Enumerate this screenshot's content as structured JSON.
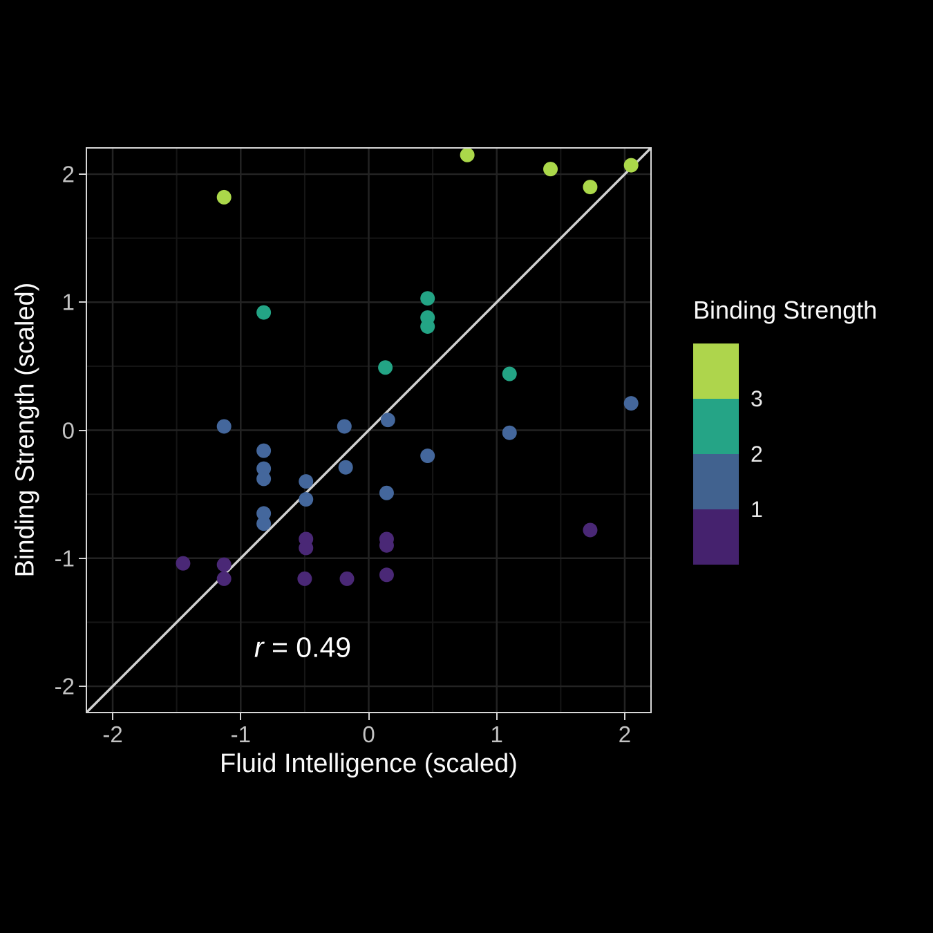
{
  "figure": {
    "background": "#000000",
    "panel_border_color": "#d8d8d8",
    "grid_major_color": "#232323",
    "grid_minor_color": "#161616",
    "identity_line_color": "#d0d0d0",
    "text_color": "#fafafa",
    "tick_label_color": "#c3c3c3"
  },
  "annotation": {
    "r_symbol": "r",
    "rest": " = 0.49",
    "full_text": "r = 0.49",
    "position_data_xy": [
      -0.51,
      -1.69
    ]
  },
  "legend": {
    "title": "Binding Strength",
    "break_labels": [
      "3",
      "2",
      "1"
    ],
    "segment_colors_top_to_bottom": [
      "#aed54c",
      "#25a486",
      "#41628f",
      "#45226e"
    ]
  },
  "chart_data": {
    "type": "scatter",
    "title": "",
    "xlabel": "Fluid Intelligence (scaled)",
    "ylabel": "Binding Strength (scaled)",
    "xlim": [
      -2.2,
      2.2
    ],
    "ylim": [
      -2.2,
      2.2
    ],
    "x_ticks": [
      {
        "value": -2,
        "label": "-2"
      },
      {
        "value": -1,
        "label": "-1"
      },
      {
        "value": 0,
        "label": "0"
      },
      {
        "value": 1,
        "label": "1"
      },
      {
        "value": 2,
        "label": "2"
      }
    ],
    "y_ticks": [
      {
        "value": 2,
        "label": "2"
      },
      {
        "value": 1,
        "label": "1"
      },
      {
        "value": 0,
        "label": "0"
      },
      {
        "value": -1,
        "label": "-1"
      },
      {
        "value": -2,
        "label": "-2"
      }
    ],
    "grid_major_values": [
      -2,
      -1,
      0,
      1,
      2
    ],
    "grid_minor_values": [
      -1.5,
      -0.5,
      0.5,
      1.5
    ],
    "identity_line": {
      "from": [
        -2.2,
        -2.2
      ],
      "to": [
        2.2,
        2.2
      ]
    },
    "legend_position": "right",
    "series": [
      {
        "name": "binding-strength-above-3",
        "color": "#abd84a",
        "points": [
          [
            -1.13,
            1.82
          ],
          [
            0.77,
            2.15
          ],
          [
            1.42,
            2.04
          ],
          [
            1.73,
            1.9
          ],
          [
            2.05,
            2.07
          ]
        ]
      },
      {
        "name": "binding-strength-2-to-3",
        "color": "#23a485",
        "points": [
          [
            -0.82,
            0.92
          ],
          [
            0.46,
            1.03
          ],
          [
            0.46,
            0.88
          ],
          [
            0.46,
            0.81
          ],
          [
            0.13,
            0.49
          ],
          [
            1.1,
            0.44
          ]
        ]
      },
      {
        "name": "binding-strength-1-to-2",
        "color": "#44679c",
        "points": [
          [
            -1.13,
            0.03
          ],
          [
            -0.82,
            -0.16
          ],
          [
            -0.82,
            -0.3
          ],
          [
            -0.82,
            -0.38
          ],
          [
            -0.82,
            -0.65
          ],
          [
            -0.82,
            -0.73
          ],
          [
            -0.49,
            -0.4
          ],
          [
            -0.49,
            -0.54
          ],
          [
            -0.19,
            0.03
          ],
          [
            -0.18,
            -0.29
          ],
          [
            0.15,
            0.08
          ],
          [
            0.14,
            -0.49
          ],
          [
            0.46,
            -0.2
          ],
          [
            1.1,
            -0.02
          ],
          [
            2.05,
            0.21
          ]
        ]
      },
      {
        "name": "binding-strength-below-1",
        "color": "#4a2876",
        "points": [
          [
            -1.45,
            -1.04
          ],
          [
            -1.13,
            -1.05
          ],
          [
            -1.13,
            -1.16
          ],
          [
            -0.49,
            -0.85
          ],
          [
            -0.49,
            -0.92
          ],
          [
            -0.5,
            -1.16
          ],
          [
            -0.17,
            -1.16
          ],
          [
            0.14,
            -0.85
          ],
          [
            0.14,
            -0.9
          ],
          [
            0.14,
            -1.13
          ],
          [
            1.73,
            -0.78
          ]
        ]
      }
    ]
  }
}
